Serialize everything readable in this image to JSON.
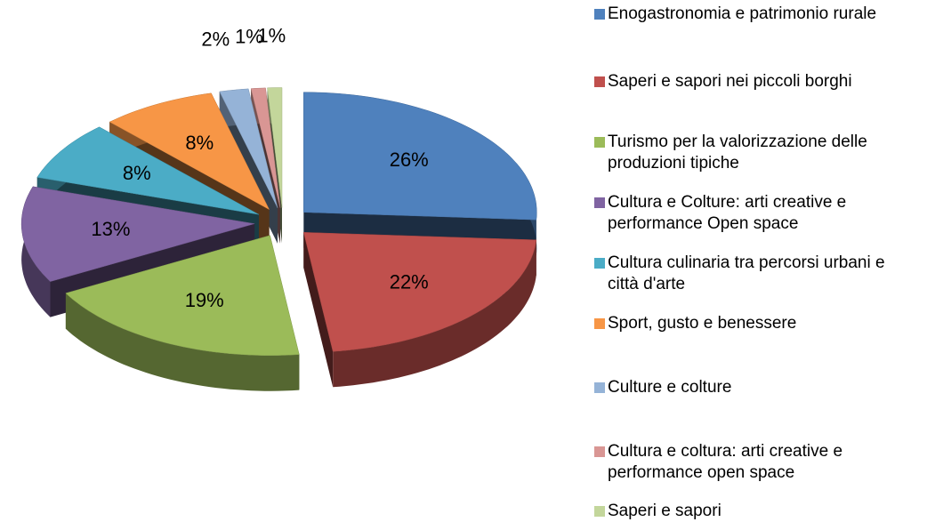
{
  "chart_data": {
    "type": "pie",
    "categories": [
      "Enogastronomia e patrimonio rurale",
      "Saperi e sapori nei piccoli borghi",
      "Turismo per la valorizzazione delle produzioni tipiche",
      "Cultura e Colture: arti creative e performance Open space",
      "Cultura culinaria tra percorsi urbani e città d'arte",
      "Sport, gusto e benessere",
      "Culture e colture",
      "Cultura e coltura: arti creative e performance open space",
      "Saperi e sapori"
    ],
    "values": [
      26,
      22,
      19,
      13,
      8,
      8,
      2,
      1,
      1
    ],
    "value_labels": [
      "26%",
      "22%",
      "19%",
      "13%",
      "8%",
      "8%",
      "2%",
      "1%",
      "1%"
    ],
    "colors": [
      "#4f81bd",
      "#c0504d",
      "#9bbb59",
      "#8064a2",
      "#4bacc6",
      "#f79646",
      "#95b3d7",
      "#d99694",
      "#c3d69b"
    ],
    "legend": "right"
  }
}
